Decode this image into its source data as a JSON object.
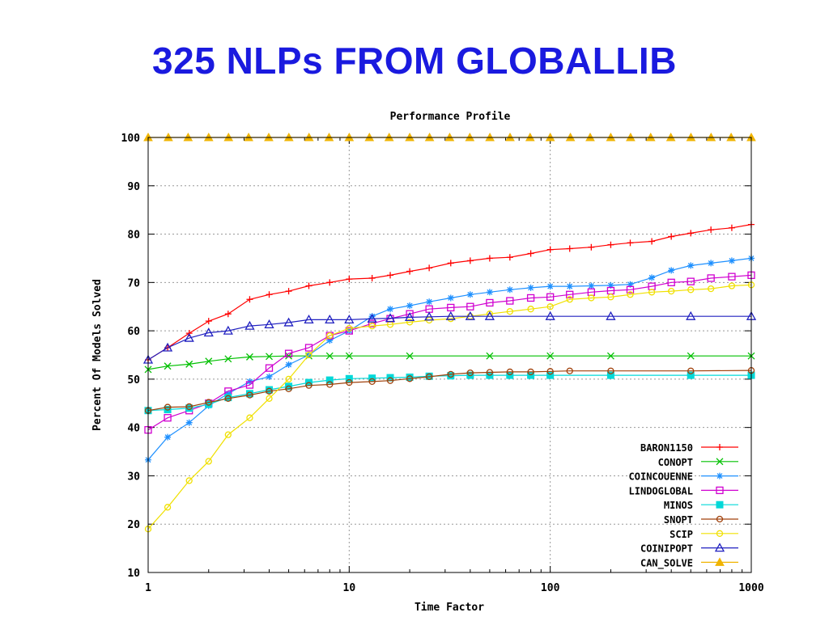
{
  "slide": {
    "title": "325 NLPs FROM GLOBALLIB"
  },
  "chart_data": {
    "type": "line",
    "title": "Performance Profile",
    "xlabel": "Time Factor",
    "ylabel": "Percent Of Models Solved",
    "x_scale": "log",
    "xlim": [
      1,
      1000
    ],
    "ylim": [
      10,
      100
    ],
    "x_ticks": [
      "1",
      "10",
      "100",
      "1000"
    ],
    "y_ticks": [
      "10",
      "20",
      "30",
      "40",
      "50",
      "60",
      "70",
      "80",
      "90",
      "100"
    ],
    "grid": true,
    "legend_position": "bottom-right",
    "series": [
      {
        "name": "BARON1150",
        "color": "#ff0000",
        "marker": "plus",
        "points": [
          [
            1,
            54
          ],
          [
            1.25,
            56.5
          ],
          [
            1.6,
            59.5
          ],
          [
            2,
            62
          ],
          [
            2.5,
            63.5
          ],
          [
            3.2,
            66.5
          ],
          [
            4,
            67.5
          ],
          [
            5,
            68.2
          ],
          [
            6.3,
            69.3
          ],
          [
            8,
            70
          ],
          [
            10,
            70.7
          ],
          [
            13,
            70.9
          ],
          [
            16,
            71.5
          ],
          [
            20,
            72.3
          ],
          [
            25,
            73
          ],
          [
            32,
            74
          ],
          [
            40,
            74.5
          ],
          [
            50,
            75
          ],
          [
            63,
            75.2
          ],
          [
            80,
            76
          ],
          [
            100,
            76.8
          ],
          [
            125,
            77
          ],
          [
            160,
            77.3
          ],
          [
            200,
            77.8
          ],
          [
            250,
            78.2
          ],
          [
            320,
            78.5
          ],
          [
            400,
            79.5
          ],
          [
            500,
            80.2
          ],
          [
            630,
            80.9
          ],
          [
            800,
            81.3
          ],
          [
            1000,
            82
          ]
        ]
      },
      {
        "name": "CONOPT",
        "color": "#00c000",
        "marker": "x",
        "points": [
          [
            1,
            52
          ],
          [
            1.25,
            52.7
          ],
          [
            1.6,
            53.1
          ],
          [
            2,
            53.7
          ],
          [
            2.5,
            54.2
          ],
          [
            3.2,
            54.6
          ],
          [
            4,
            54.7
          ],
          [
            5,
            54.8
          ],
          [
            6.3,
            54.8
          ],
          [
            8,
            54.8
          ],
          [
            10,
            54.8
          ],
          [
            20,
            54.8
          ],
          [
            50,
            54.8
          ],
          [
            100,
            54.8
          ],
          [
            200,
            54.8
          ],
          [
            500,
            54.8
          ],
          [
            1000,
            54.8
          ]
        ]
      },
      {
        "name": "COINCOUENNE",
        "color": "#1e90ff",
        "marker": "star",
        "points": [
          [
            1,
            33.3
          ],
          [
            1.25,
            38
          ],
          [
            1.6,
            41
          ],
          [
            2,
            44.5
          ],
          [
            2.5,
            47
          ],
          [
            3.2,
            49.5
          ],
          [
            4,
            50.5
          ],
          [
            5,
            53
          ],
          [
            6.3,
            55
          ],
          [
            8,
            58
          ],
          [
            10,
            60
          ],
          [
            13,
            63
          ],
          [
            16,
            64.5
          ],
          [
            20,
            65.2
          ],
          [
            25,
            66
          ],
          [
            32,
            66.8
          ],
          [
            40,
            67.5
          ],
          [
            50,
            68
          ],
          [
            63,
            68.5
          ],
          [
            80,
            68.9
          ],
          [
            100,
            69.2
          ],
          [
            125,
            69.2
          ],
          [
            160,
            69.3
          ],
          [
            200,
            69.4
          ],
          [
            250,
            69.6
          ],
          [
            320,
            71
          ],
          [
            400,
            72.5
          ],
          [
            500,
            73.5
          ],
          [
            630,
            74
          ],
          [
            800,
            74.5
          ],
          [
            1000,
            75
          ]
        ]
      },
      {
        "name": "LINDOGLOBAL",
        "color": "#d000d0",
        "marker": "square",
        "points": [
          [
            1,
            39.5
          ],
          [
            1.25,
            42
          ],
          [
            1.6,
            43.5
          ],
          [
            2,
            45
          ],
          [
            2.5,
            47.5
          ],
          [
            3.2,
            48.8
          ],
          [
            4,
            52.3
          ],
          [
            5,
            55.3
          ],
          [
            6.3,
            56.5
          ],
          [
            8,
            59
          ],
          [
            10,
            60
          ],
          [
            13,
            61.5
          ],
          [
            16,
            62.5
          ],
          [
            20,
            63.5
          ],
          [
            25,
            64.5
          ],
          [
            32,
            64.8
          ],
          [
            40,
            65
          ],
          [
            50,
            65.8
          ],
          [
            63,
            66.2
          ],
          [
            80,
            66.8
          ],
          [
            100,
            67
          ],
          [
            125,
            67.5
          ],
          [
            160,
            68
          ],
          [
            200,
            68.3
          ],
          [
            250,
            68.5
          ],
          [
            320,
            69.2
          ],
          [
            400,
            70
          ],
          [
            500,
            70.2
          ],
          [
            630,
            70.9
          ],
          [
            800,
            71.2
          ],
          [
            1000,
            71.5
          ]
        ]
      },
      {
        "name": "MINOS",
        "color": "#00d8d8",
        "marker": "filled-square",
        "points": [
          [
            1,
            43.5
          ],
          [
            1.25,
            43.7
          ],
          [
            1.6,
            44
          ],
          [
            2,
            44.8
          ],
          [
            2.5,
            46.2
          ],
          [
            3.2,
            47
          ],
          [
            4,
            47.8
          ],
          [
            5,
            48.5
          ],
          [
            6.3,
            49.3
          ],
          [
            8,
            49.8
          ],
          [
            10,
            50.1
          ],
          [
            13,
            50.2
          ],
          [
            16,
            50.3
          ],
          [
            20,
            50.4
          ],
          [
            25,
            50.6
          ],
          [
            32,
            50.7
          ],
          [
            40,
            50.8
          ],
          [
            50,
            50.8
          ],
          [
            63,
            50.8
          ],
          [
            80,
            50.8
          ],
          [
            100,
            50.8
          ],
          [
            200,
            50.8
          ],
          [
            500,
            50.8
          ],
          [
            1000,
            50.8
          ]
        ]
      },
      {
        "name": "SNOPT",
        "color": "#a0400a",
        "marker": "circle",
        "points": [
          [
            1,
            43.5
          ],
          [
            1.25,
            44.2
          ],
          [
            1.6,
            44.3
          ],
          [
            2,
            45.2
          ],
          [
            2.5,
            46
          ],
          [
            3.2,
            46.7
          ],
          [
            4,
            47.5
          ],
          [
            5,
            48
          ],
          [
            6.3,
            48.7
          ],
          [
            8,
            48.9
          ],
          [
            10,
            49.3
          ],
          [
            13,
            49.5
          ],
          [
            16,
            49.7
          ],
          [
            20,
            50.1
          ],
          [
            25,
            50.5
          ],
          [
            32,
            51
          ],
          [
            40,
            51.3
          ],
          [
            50,
            51.4
          ],
          [
            63,
            51.5
          ],
          [
            80,
            51.5
          ],
          [
            100,
            51.6
          ],
          [
            125,
            51.7
          ],
          [
            200,
            51.7
          ],
          [
            500,
            51.7
          ],
          [
            1000,
            51.8
          ]
        ]
      },
      {
        "name": "SCIP",
        "color": "#f0e000",
        "marker": "circle",
        "points": [
          [
            1,
            19
          ],
          [
            1.25,
            23.5
          ],
          [
            1.6,
            29
          ],
          [
            2,
            33
          ],
          [
            2.5,
            38.5
          ],
          [
            3.2,
            42
          ],
          [
            4,
            46
          ],
          [
            5,
            50
          ],
          [
            6.3,
            55
          ],
          [
            8,
            59
          ],
          [
            10,
            60.5
          ],
          [
            13,
            61
          ],
          [
            16,
            61.3
          ],
          [
            20,
            61.8
          ],
          [
            25,
            62.2
          ],
          [
            32,
            62.5
          ],
          [
            40,
            63
          ],
          [
            50,
            63.5
          ],
          [
            63,
            64
          ],
          [
            80,
            64.5
          ],
          [
            100,
            65
          ],
          [
            125,
            66.5
          ],
          [
            160,
            66.8
          ],
          [
            200,
            67
          ],
          [
            250,
            67.5
          ],
          [
            320,
            68
          ],
          [
            400,
            68.2
          ],
          [
            500,
            68.5
          ],
          [
            630,
            68.7
          ],
          [
            800,
            69.3
          ],
          [
            1000,
            69.5
          ]
        ]
      },
      {
        "name": "COINIPOPT",
        "color": "#2020c0",
        "marker": "triangle",
        "points": [
          [
            1,
            54
          ],
          [
            1.25,
            56.5
          ],
          [
            1.6,
            58.5
          ],
          [
            2,
            59.6
          ],
          [
            2.5,
            60
          ],
          [
            3.2,
            61
          ],
          [
            4,
            61.3
          ],
          [
            5,
            61.7
          ],
          [
            6.3,
            62.3
          ],
          [
            8,
            62.3
          ],
          [
            10,
            62.3
          ],
          [
            13,
            62.5
          ],
          [
            16,
            62.6
          ],
          [
            20,
            62.8
          ],
          [
            25,
            62.9
          ],
          [
            32,
            63
          ],
          [
            40,
            63
          ],
          [
            50,
            63
          ],
          [
            100,
            63
          ],
          [
            200,
            63
          ],
          [
            500,
            63
          ],
          [
            1000,
            63
          ]
        ]
      },
      {
        "name": "CAN_SOLVE",
        "color": "#f0b400",
        "marker": "filled-triangle",
        "points": [
          [
            1,
            100
          ],
          [
            1.26,
            100
          ],
          [
            1.58,
            100
          ],
          [
            2,
            100
          ],
          [
            2.51,
            100
          ],
          [
            3.16,
            100
          ],
          [
            3.98,
            100
          ],
          [
            5.01,
            100
          ],
          [
            6.31,
            100
          ],
          [
            7.94,
            100
          ],
          [
            10,
            100
          ],
          [
            12.6,
            100
          ],
          [
            15.8,
            100
          ],
          [
            20,
            100
          ],
          [
            25.1,
            100
          ],
          [
            31.6,
            100
          ],
          [
            39.8,
            100
          ],
          [
            50.1,
            100
          ],
          [
            63.1,
            100
          ],
          [
            79.4,
            100
          ],
          [
            100,
            100
          ],
          [
            126,
            100
          ],
          [
            158,
            100
          ],
          [
            200,
            100
          ],
          [
            251,
            100
          ],
          [
            316,
            100
          ],
          [
            398,
            100
          ],
          [
            501,
            100
          ],
          [
            631,
            100
          ],
          [
            794,
            100
          ],
          [
            1000,
            100
          ]
        ]
      }
    ]
  }
}
